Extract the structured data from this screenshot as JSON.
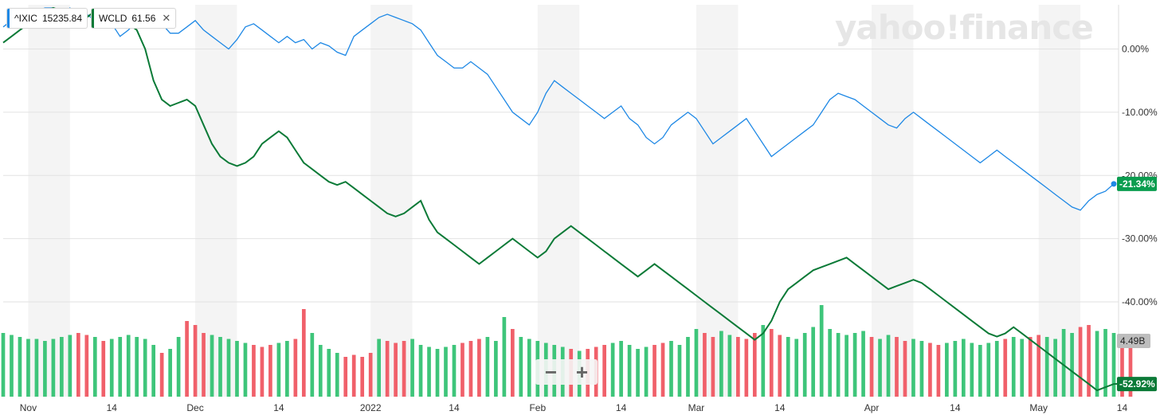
{
  "legend": [
    {
      "symbol": "^IXIC",
      "value": "15235.84",
      "color": "#1e88e5"
    },
    {
      "symbol": "WCLD",
      "value": "61.56",
      "color": "#0b7a37",
      "close": "✕"
    }
  ],
  "watermark": "yahoo!finance",
  "zoom": {
    "minus": "−",
    "plus": "+"
  },
  "chart_data": {
    "type": "line",
    "y_unit": "%",
    "ylim": [
      -55,
      7
    ],
    "y_ticks": [
      0,
      -10,
      -20,
      -30,
      -40
    ],
    "y_tick_labels": [
      "0.00%",
      "-10.00%",
      "-20.00%",
      "-30.00%",
      "-40.00%"
    ],
    "x_tick_labels": [
      "Nov",
      "14",
      "Dec",
      "14",
      "2022",
      "14",
      "Feb",
      "14",
      "Mar",
      "14",
      "Apr",
      "14",
      "May",
      "14"
    ],
    "x_tick_index": [
      3,
      13,
      23,
      33,
      44,
      54,
      64,
      74,
      83,
      93,
      104,
      114,
      124,
      134
    ],
    "grid": true,
    "series": [
      {
        "name": "^IXIC",
        "color": "#1e88e5",
        "end_label": "-21.34%",
        "values": [
          3.5,
          4.5,
          5.5,
          5.5,
          6,
          6.5,
          6.5,
          5.5,
          6.5,
          5,
          5.5,
          4.5,
          5.5,
          4,
          2,
          3,
          4.5,
          5,
          4,
          4,
          2.5,
          2.5,
          3.5,
          4.5,
          3,
          2,
          1,
          0,
          1.5,
          3.5,
          4,
          3,
          2,
          1,
          2,
          1,
          1.5,
          0,
          1,
          0.5,
          -0.5,
          -1,
          2,
          3,
          4,
          5,
          5.5,
          5,
          4.5,
          4,
          3,
          1,
          -1,
          -2,
          -3,
          -3,
          -2,
          -3,
          -4,
          -6,
          -8,
          -10,
          -11,
          -12,
          -10,
          -7,
          -5,
          -6,
          -7,
          -8,
          -9,
          -10,
          -11,
          -10,
          -9,
          -11,
          -12,
          -14,
          -15,
          -14,
          -12,
          -11,
          -10,
          -11,
          -13,
          -15,
          -14,
          -13,
          -12,
          -11,
          -13,
          -15,
          -17,
          -16,
          -15,
          -14,
          -13,
          -12,
          -10,
          -8,
          -7,
          -7.5,
          -8,
          -9,
          -10,
          -11,
          -12,
          -12.5,
          -11,
          -10,
          -11,
          -12,
          -13,
          -14,
          -15,
          -16,
          -17,
          -18,
          -17,
          -16,
          -17,
          -18,
          -19,
          -20,
          -21,
          -22,
          -23,
          -24,
          -25,
          -25.5,
          -24,
          -23,
          -22.5,
          -21.34
        ]
      },
      {
        "name": "WCLD",
        "color": "#0b7a37",
        "end_label": "-52.92%",
        "values": [
          1,
          2,
          3,
          4,
          5,
          6,
          6.5,
          6,
          5,
          4,
          5,
          6,
          6,
          5.5,
          5,
          4,
          3,
          0,
          -5,
          -8,
          -9,
          -8.5,
          -8,
          -9,
          -12,
          -15,
          -17,
          -18,
          -18.5,
          -18,
          -17,
          -15,
          -14,
          -13,
          -14,
          -16,
          -18,
          -19,
          -20,
          -21,
          -21.5,
          -21,
          -22,
          -23,
          -24,
          -25,
          -26,
          -26.5,
          -26,
          -25,
          -24,
          -27,
          -29,
          -30,
          -31,
          -32,
          -33,
          -34,
          -33,
          -32,
          -31,
          -30,
          -31,
          -32,
          -33,
          -32,
          -30,
          -29,
          -28,
          -29,
          -30,
          -31,
          -32,
          -33,
          -34,
          -35,
          -36,
          -35,
          -34,
          -35,
          -36,
          -37,
          -38,
          -39,
          -40,
          -41,
          -42,
          -43,
          -44,
          -45,
          -46,
          -45,
          -43,
          -40,
          -38,
          -37,
          -36,
          -35,
          -34.5,
          -34,
          -33.5,
          -33,
          -34,
          -35,
          -36,
          -37,
          -38,
          -37.5,
          -37,
          -36.5,
          -37,
          -38,
          -39,
          -40,
          -41,
          -42,
          -43,
          -44,
          -45,
          -45.5,
          -45,
          -44,
          -45,
          -46,
          -47,
          -48,
          -49,
          -50,
          -51,
          -52,
          -53,
          -54,
          -53.5,
          -53,
          -52.92
        ]
      }
    ],
    "volume": {
      "values": [
        1.6,
        1.55,
        1.5,
        1.45,
        1.45,
        1.4,
        1.45,
        1.5,
        1.55,
        1.6,
        1.55,
        1.5,
        1.4,
        1.45,
        1.5,
        1.55,
        1.5,
        1.45,
        1.3,
        1.1,
        1.2,
        1.5,
        1.9,
        1.8,
        1.6,
        1.55,
        1.5,
        1.45,
        1.4,
        1.35,
        1.3,
        1.25,
        1.3,
        1.35,
        1.4,
        1.45,
        2.2,
        1.6,
        1.3,
        1.2,
        1.1,
        1.0,
        1.05,
        1.0,
        1.1,
        1.45,
        1.4,
        1.35,
        1.4,
        1.45,
        1.3,
        1.25,
        1.2,
        1.25,
        1.3,
        1.35,
        1.4,
        1.45,
        1.5,
        1.4,
        2.0,
        1.7,
        1.5,
        1.45,
        1.4,
        1.35,
        1.3,
        1.25,
        1.2,
        1.15,
        1.2,
        1.25,
        1.3,
        1.35,
        1.4,
        1.3,
        1.2,
        1.25,
        1.3,
        1.35,
        1.4,
        1.3,
        1.5,
        1.7,
        1.6,
        1.5,
        1.65,
        1.55,
        1.5,
        1.45,
        1.6,
        1.8,
        1.7,
        1.55,
        1.5,
        1.45,
        1.6,
        1.75,
        2.3,
        1.7,
        1.6,
        1.55,
        1.6,
        1.65,
        1.5,
        1.45,
        1.55,
        1.5,
        1.4,
        1.45,
        1.4,
        1.35,
        1.3,
        1.35,
        1.4,
        1.45,
        1.35,
        1.3,
        1.35,
        1.4,
        1.45,
        1.5,
        1.45,
        1.5,
        1.55,
        1.5,
        1.45,
        1.7,
        1.6,
        1.75,
        1.8,
        1.65,
        1.7,
        1.6,
        1.55,
        1.5
      ],
      "colors": [
        "g",
        "g",
        "g",
        "g",
        "g",
        "g",
        "g",
        "g",
        "g",
        "r",
        "r",
        "g",
        "r",
        "g",
        "g",
        "g",
        "g",
        "g",
        "g",
        "r",
        "g",
        "g",
        "r",
        "r",
        "r",
        "g",
        "g",
        "g",
        "g",
        "g",
        "r",
        "r",
        "r",
        "g",
        "g",
        "r",
        "r",
        "g",
        "g",
        "g",
        "g",
        "r",
        "r",
        "r",
        "r",
        "g",
        "r",
        "r",
        "r",
        "g",
        "g",
        "g",
        "g",
        "g",
        "g",
        "r",
        "r",
        "r",
        "g",
        "g",
        "g",
        "r",
        "g",
        "g",
        "g",
        "g",
        "g",
        "g",
        "r",
        "g",
        "r",
        "r",
        "r",
        "g",
        "g",
        "g",
        "g",
        "g",
        "r",
        "r",
        "g",
        "g",
        "g",
        "g",
        "r",
        "r",
        "g",
        "g",
        "r",
        "r",
        "r",
        "g",
        "r",
        "r",
        "g",
        "g",
        "g",
        "g",
        "g",
        "g",
        "g",
        "g",
        "g",
        "g",
        "r",
        "g",
        "g",
        "r",
        "r",
        "g",
        "g",
        "r",
        "r",
        "g",
        "g",
        "g",
        "g",
        "g",
        "g",
        "g",
        "r",
        "g",
        "g",
        "r",
        "r",
        "g",
        "g",
        "g",
        "g",
        "r",
        "r",
        "g",
        "g",
        "g",
        "r",
        "r",
        "r",
        "r"
      ],
      "label": "4.49B"
    }
  }
}
